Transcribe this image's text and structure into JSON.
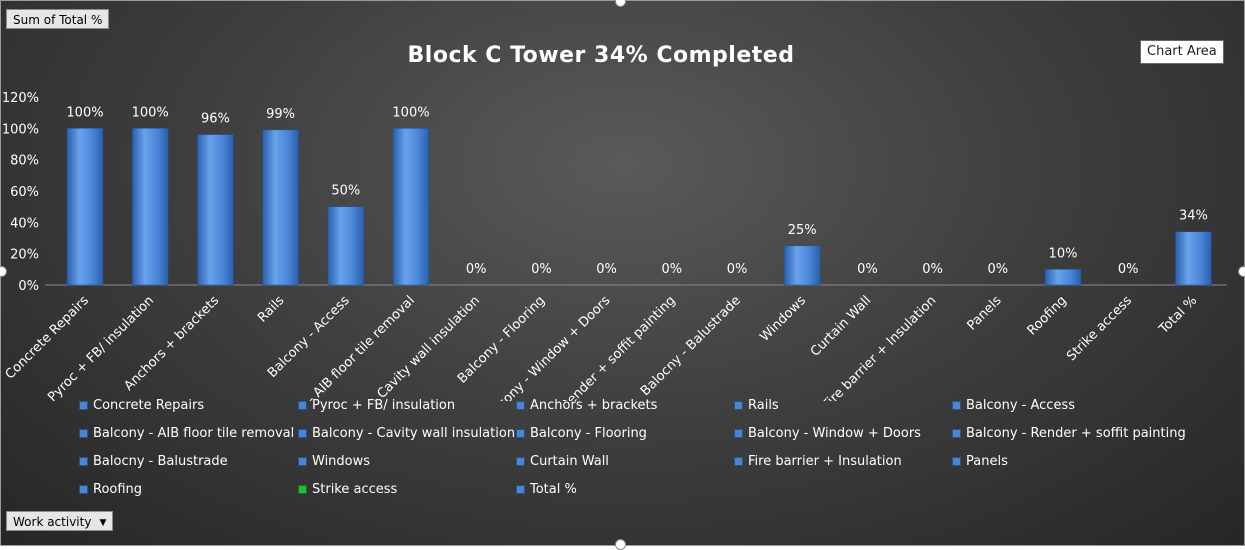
{
  "pivot": {
    "values_field": "Sum of Total %",
    "axis_field": "Work activity",
    "axis_dropdown_icon": "dropdown-arrow-icon"
  },
  "chart_area_tooltip": "Chart Area",
  "colors": {
    "bar": "#4a86d8",
    "bar_light": "#6aa2ec",
    "bar_dark": "#2a5fab",
    "strike_access_legend": "#22bb33"
  },
  "chart_data": {
    "type": "bar",
    "title": "Block C Tower 34% Completed",
    "xlabel": "",
    "ylabel": "",
    "ylim": [
      0,
      120
    ],
    "y_ticks": [
      "0%",
      "20%",
      "40%",
      "60%",
      "80%",
      "100%",
      "120%"
    ],
    "grid": false,
    "legend_position": "bottom",
    "categories": [
      "Concrete Repairs",
      "Pyroc + FB/ insulation",
      "Anchors + brackets",
      "Rails",
      "Balcony - Access",
      "Balcony - AIB floor tile removal",
      "Balcony - Cavity wall insulation",
      "Balcony - Flooring",
      "Balcony - Window + Doors",
      "Balcony - Render + soffit painting",
      "Balocny - Balustrade",
      "Windows",
      "Curtain Wall",
      "Fire barrier + Insulation",
      "Panels",
      "Roofing",
      "Strike access",
      "Total %"
    ],
    "values": [
      100,
      100,
      96,
      99,
      50,
      100,
      0,
      0,
      0,
      0,
      0,
      25,
      0,
      0,
      0,
      10,
      0,
      34
    ],
    "data_labels": [
      "100%",
      "100%",
      "96%",
      "99%",
      "50%",
      "100%",
      "0%",
      "0%",
      "0%",
      "0%",
      "0%",
      "25%",
      "0%",
      "0%",
      "0%",
      "10%",
      "0%",
      "34%"
    ]
  }
}
